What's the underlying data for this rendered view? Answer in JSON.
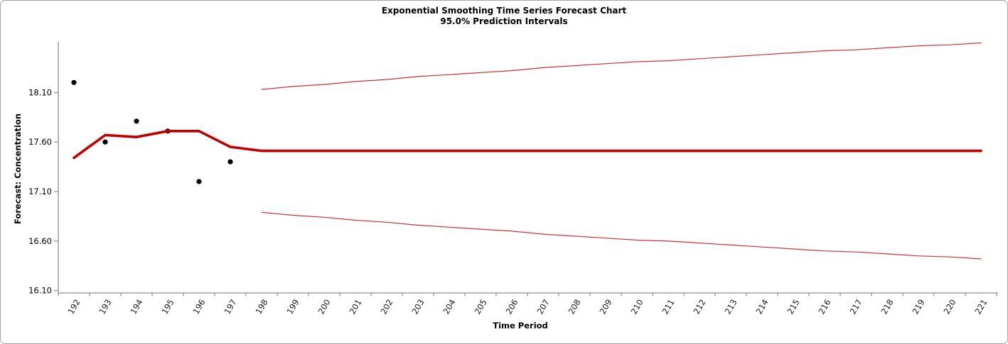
{
  "frame": {
    "background": "#ffffff",
    "border_color": "#a6a6a6"
  },
  "chart_data": {
    "type": "line",
    "title": "Exponential Smoothing Time Series Forecast Chart",
    "subtitle": "95.0% Prediction Intervals",
    "xlabel": "Time Period",
    "ylabel": "Forecast: Concentration",
    "x_categories": [
      192,
      193,
      194,
      195,
      196,
      197,
      198,
      199,
      200,
      201,
      202,
      203,
      204,
      205,
      206,
      207,
      208,
      209,
      210,
      211,
      212,
      213,
      214,
      215,
      216,
      217,
      218,
      219,
      220,
      221
    ],
    "y_tick_labels": [
      "16.10",
      "16.60",
      "17.10",
      "17.60",
      "18.10"
    ],
    "ylim": [
      16.1,
      18.65
    ],
    "grid": false,
    "legend_position": "none",
    "axis_color": "#8f8f8f",
    "text_color": "#000000",
    "series": [
      {
        "name": "observed",
        "type": "scatter",
        "color": "#000000",
        "marker_radius": 3.6,
        "x": [
          192,
          193,
          194,
          195,
          196,
          197
        ],
        "values": [
          18.2,
          17.6,
          17.81,
          17.71,
          17.2,
          17.4
        ]
      },
      {
        "name": "forecast",
        "type": "line",
        "color": "#c00000",
        "line_width": 3.6,
        "x": [
          192,
          193,
          194,
          195,
          196,
          197,
          198,
          199,
          200,
          201,
          202,
          203,
          204,
          205,
          206,
          207,
          208,
          209,
          210,
          211,
          212,
          213,
          214,
          215,
          216,
          217,
          218,
          219,
          220,
          221
        ],
        "values": [
          17.44,
          17.67,
          17.65,
          17.71,
          17.71,
          17.55,
          17.51,
          17.51,
          17.51,
          17.51,
          17.51,
          17.51,
          17.51,
          17.51,
          17.51,
          17.51,
          17.51,
          17.51,
          17.51,
          17.51,
          17.51,
          17.51,
          17.51,
          17.51,
          17.51,
          17.51,
          17.51,
          17.51,
          17.51,
          17.51
        ]
      },
      {
        "name": "upper-95-prediction-interval",
        "type": "line",
        "color": "#cc3333",
        "line_width": 1.2,
        "x": [
          198,
          199,
          200,
          201,
          202,
          203,
          204,
          205,
          206,
          207,
          208,
          209,
          210,
          211,
          212,
          213,
          214,
          215,
          216,
          217,
          218,
          219,
          220,
          221
        ],
        "values": [
          18.13,
          18.16,
          18.18,
          18.21,
          18.23,
          18.26,
          18.28,
          18.3,
          18.32,
          18.35,
          18.37,
          18.39,
          18.41,
          18.42,
          18.44,
          18.46,
          18.48,
          18.5,
          18.52,
          18.53,
          18.55,
          18.57,
          18.58,
          18.6
        ]
      },
      {
        "name": "lower-95-prediction-interval",
        "type": "line",
        "color": "#cc3333",
        "line_width": 1.2,
        "x": [
          198,
          199,
          200,
          201,
          202,
          203,
          204,
          205,
          206,
          207,
          208,
          209,
          210,
          211,
          212,
          213,
          214,
          215,
          216,
          217,
          218,
          219,
          220,
          221
        ],
        "values": [
          16.89,
          16.86,
          16.84,
          16.81,
          16.79,
          16.76,
          16.74,
          16.72,
          16.7,
          16.67,
          16.65,
          16.63,
          16.61,
          16.6,
          16.58,
          16.56,
          16.54,
          16.52,
          16.5,
          16.49,
          16.47,
          16.45,
          16.44,
          16.42
        ]
      }
    ]
  }
}
